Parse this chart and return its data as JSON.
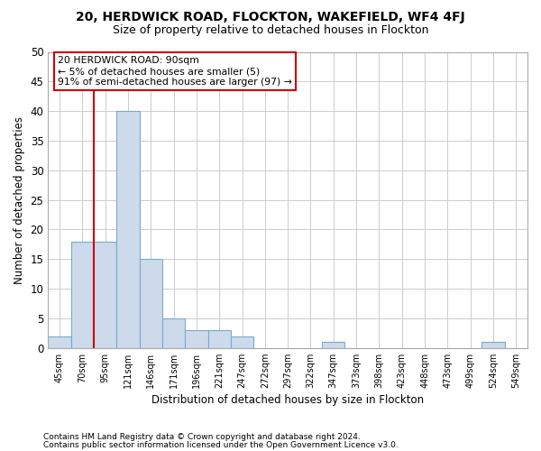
{
  "title1": "20, HERDWICK ROAD, FLOCKTON, WAKEFIELD, WF4 4FJ",
  "title2": "Size of property relative to detached houses in Flockton",
  "xlabel": "Distribution of detached houses by size in Flockton",
  "ylabel": "Number of detached properties",
  "footer1": "Contains HM Land Registry data © Crown copyright and database right 2024.",
  "footer2": "Contains public sector information licensed under the Open Government Licence v3.0.",
  "bar_labels": [
    "45sqm",
    "70sqm",
    "95sqm",
    "121sqm",
    "146sqm",
    "171sqm",
    "196sqm",
    "221sqm",
    "247sqm",
    "272sqm",
    "297sqm",
    "322sqm",
    "347sqm",
    "373sqm",
    "398sqm",
    "423sqm",
    "448sqm",
    "473sqm",
    "499sqm",
    "524sqm",
    "549sqm"
  ],
  "bar_values": [
    2,
    18,
    18,
    40,
    15,
    5,
    3,
    3,
    2,
    0,
    0,
    0,
    1,
    0,
    0,
    0,
    0,
    0,
    0,
    1,
    0
  ],
  "bar_color": "#ccdaeb",
  "bar_edge_color": "#7aaac8",
  "ylim": [
    0,
    50
  ],
  "yticks": [
    0,
    5,
    10,
    15,
    20,
    25,
    30,
    35,
    40,
    45,
    50
  ],
  "property_line_x": 1.5,
  "property_line_color": "#cc0000",
  "annotation_line1": "20 HERDWICK ROAD: 90sqm",
  "annotation_line2": "← 5% of detached houses are smaller (5)",
  "annotation_line3": "91% of semi-detached houses are larger (97) →",
  "annotation_box_color": "#ffffff",
  "annotation_box_edge": "#cc0000",
  "background_color": "#ffffff",
  "grid_color": "#cccccc"
}
